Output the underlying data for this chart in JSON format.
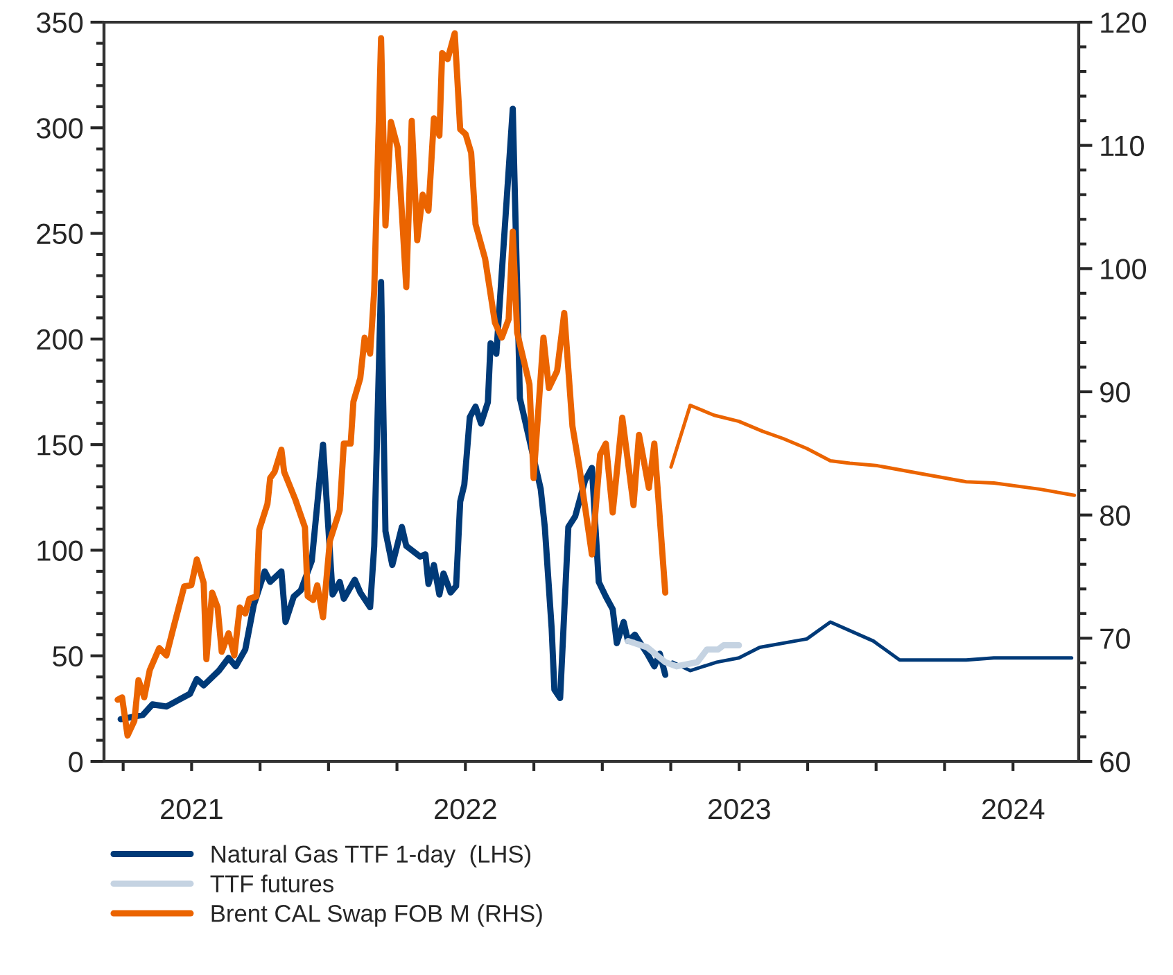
{
  "chart_data": {
    "type": "line",
    "xlim": [
      2021.18,
      2024.74
    ],
    "xticks": [
      {
        "value": 2021.25,
        "label": null
      },
      {
        "value": 2021.5,
        "label": "2021"
      },
      {
        "value": 2021.75,
        "label": null
      },
      {
        "value": 2022,
        "label": null
      },
      {
        "value": 2022.25,
        "label": null
      },
      {
        "value": 2022.5,
        "label": "2022"
      },
      {
        "value": 2022.75,
        "label": null
      },
      {
        "value": 2023,
        "label": null
      },
      {
        "value": 2023.25,
        "label": null
      },
      {
        "value": 2023.5,
        "label": "2023"
      },
      {
        "value": 2023.75,
        "label": null
      },
      {
        "value": 2024,
        "label": null
      },
      {
        "value": 2024.25,
        "label": null
      },
      {
        "value": 2024.5,
        "label": "2024"
      }
    ],
    "ylim": [
      0,
      350
    ],
    "yticks": [
      0,
      50,
      100,
      150,
      200,
      250,
      300,
      350,
      {
        "value": 10,
        "label": null
      },
      {
        "value": 20,
        "label": null
      },
      {
        "value": 30,
        "label": null
      },
      {
        "value": 40,
        "label": null
      },
      {
        "value": 60,
        "label": null
      },
      {
        "value": 70,
        "label": null
      },
      {
        "value": 80,
        "label": null
      },
      {
        "value": 90,
        "label": null
      },
      {
        "value": 110,
        "label": null
      },
      {
        "value": 120,
        "label": null
      },
      {
        "value": 130,
        "label": null
      },
      {
        "value": 140,
        "label": null
      },
      {
        "value": 160,
        "label": null
      },
      {
        "value": 170,
        "label": null
      },
      {
        "value": 180,
        "label": null
      },
      {
        "value": 190,
        "label": null
      },
      {
        "value": 210,
        "label": null
      },
      {
        "value": 220,
        "label": null
      },
      {
        "value": 230,
        "label": null
      },
      {
        "value": 240,
        "label": null
      },
      {
        "value": 260,
        "label": null
      },
      {
        "value": 270,
        "label": null
      },
      {
        "value": 280,
        "label": null
      },
      {
        "value": 290,
        "label": null
      },
      {
        "value": 310,
        "label": null
      },
      {
        "value": 320,
        "label": null
      },
      {
        "value": 330,
        "label": null
      },
      {
        "value": 340,
        "label": null
      }
    ],
    "y2lim": [
      60,
      120
    ],
    "y2ticks": [
      60,
      70,
      80,
      90,
      100,
      110,
      120,
      {
        "value": 62,
        "label": null
      },
      {
        "value": 64,
        "label": null
      },
      {
        "value": 66,
        "label": null
      },
      {
        "value": 68,
        "label": null
      },
      {
        "value": 72,
        "label": null
      },
      {
        "value": 74,
        "label": null
      },
      {
        "value": 76,
        "label": null
      },
      {
        "value": 78,
        "label": null
      },
      {
        "value": 82,
        "label": null
      },
      {
        "value": 84,
        "label": null
      },
      {
        "value": 86,
        "label": null
      },
      {
        "value": 88,
        "label": null
      },
      {
        "value": 92,
        "label": null
      },
      {
        "value": 94,
        "label": null
      },
      {
        "value": 96,
        "label": null
      },
      {
        "value": 98,
        "label": null
      },
      {
        "value": 102,
        "label": null
      },
      {
        "value": 104,
        "label": null
      },
      {
        "value": 106,
        "label": null
      },
      {
        "value": 108,
        "label": null
      },
      {
        "value": 112,
        "label": null
      },
      {
        "value": 114,
        "label": null
      },
      {
        "value": 116,
        "label": null
      },
      {
        "value": 118,
        "label": null
      }
    ],
    "grid": false,
    "legend": "bottom",
    "marker": "none",
    "line_style": "solid",
    "series": [
      {
        "name": "Natural Gas TTF 1-day  (LHS)",
        "color": "#003a78",
        "x": [
          2021.241,
          2021.322,
          2021.357,
          2021.408,
          2021.494,
          2021.519,
          2021.544,
          2021.6,
          2021.635,
          2021.661,
          2021.696,
          2021.727,
          2021.767,
          2021.787,
          2021.828,
          2021.843,
          2021.873,
          2021.899,
          2021.939,
          2021.98,
          2022.015,
          2022.041,
          2022.056,
          2022.096,
          2022.116,
          2022.152,
          2022.167,
          2022.192,
          2022.208,
          2022.233,
          2022.268,
          2022.284,
          2022.334,
          2022.354,
          2022.365,
          2022.385,
          2022.405,
          2022.42,
          2022.446,
          2022.466,
          2022.481,
          2022.496,
          2022.516,
          2022.537,
          2022.557,
          2022.582,
          2022.592,
          2022.613,
          2022.673,
          2022.699,
          2022.775,
          2022.79,
          2022.815,
          2022.825,
          2022.846,
          2022.876,
          2022.901,
          2022.937,
          2022.962,
          2022.987,
          2023.013,
          2023.038,
          2023.053,
          2023.078,
          2023.094,
          2023.119,
          2023.164,
          2023.19,
          2023.21,
          2023.23
        ],
        "values": [
          20,
          22,
          27,
          26,
          32,
          39,
          36,
          43,
          49,
          45,
          53,
          74,
          90,
          85,
          90,
          66,
          78,
          81,
          95,
          150,
          79,
          85,
          77,
          86,
          80,
          73,
          102,
          227,
          109,
          93,
          111,
          102,
          97,
          98,
          84,
          93,
          79,
          89,
          80,
          83,
          123,
          131,
          163,
          168,
          160,
          170,
          198,
          193,
          309,
          172,
          129,
          111,
          63,
          34,
          30,
          111,
          116,
          133,
          139,
          85,
          78,
          72,
          56,
          66,
          57,
          60,
          51,
          45,
          51,
          41
        ]
      },
      {
        "name": "TTF futures",
        "color": "#c5d3e2",
        "x": [
          2023.094,
          2023.164,
          2023.23,
          2023.271,
          2023.347,
          2023.382,
          2023.423,
          2023.443,
          2023.499
        ],
        "values": [
          57,
          54,
          47,
          45,
          47,
          53,
          53,
          55,
          55
        ]
      },
      {
        "color": "#003a78",
        "x": [
          2023.256,
          2023.321,
          2023.418,
          2023.499,
          2023.575,
          2023.747,
          2023.833,
          2023.99,
          2024.086,
          2024.329,
          2024.43,
          2024.714
        ],
        "values": [
          47,
          43,
          47,
          49,
          54,
          58,
          66,
          57,
          48,
          48,
          49,
          49
        ]
      },
      {
        "name": "Brent CAL Swap FOB M (RHS)",
        "color": "#eb6400",
        "axis": "y2",
        "x": [
          2021.23,
          2021.246,
          2021.266,
          2021.291,
          2021.306,
          2021.327,
          2021.347,
          2021.382,
          2021.408,
          2021.433,
          2021.473,
          2021.499,
          2021.519,
          2021.544,
          2021.554,
          2021.575,
          2021.595,
          2021.61,
          2021.635,
          2021.656,
          2021.676,
          2021.696,
          2021.711,
          2021.737,
          2021.747,
          2021.777,
          2021.787,
          2021.803,
          2021.828,
          2021.838,
          2021.878,
          2021.914,
          2021.924,
          2021.944,
          2021.959,
          2021.98,
          2022.005,
          2022.041,
          2022.056,
          2022.081,
          2022.091,
          2022.116,
          2022.132,
          2022.152,
          2022.167,
          2022.192,
          2022.208,
          2022.228,
          2022.253,
          2022.263,
          2022.284,
          2022.304,
          2022.324,
          2022.344,
          2022.365,
          2022.385,
          2022.405,
          2022.415,
          2022.435,
          2022.461,
          2022.481,
          2022.501,
          2022.521,
          2022.537,
          2022.572,
          2022.608,
          2022.633,
          2022.658,
          2022.673,
          2022.689,
          2022.734,
          2022.749,
          2022.785,
          2022.805,
          2022.835,
          2022.861,
          2022.891,
          2022.916,
          2022.962,
          2022.992,
          2023.013,
          2023.038,
          2023.073,
          2023.114,
          2023.134,
          2023.17,
          2023.19,
          2023.23
        ],
        "values": [
          65.0,
          65.2,
          62.1,
          63.3,
          66.6,
          65.2,
          67.4,
          69.2,
          68.6,
          70.8,
          74.2,
          74.3,
          76.4,
          74.5,
          68.3,
          73.7,
          72.5,
          68.9,
          70.4,
          68.6,
          72.5,
          72.0,
          73.2,
          73.4,
          78.8,
          80.9,
          83.0,
          83.5,
          85.3,
          83.5,
          81.3,
          79.0,
          73.4,
          73.1,
          74.3,
          71.7,
          77.9,
          80.4,
          85.8,
          85.8,
          89.2,
          91.1,
          94.4,
          93.1,
          98.2,
          118.7,
          103.5,
          111.9,
          109.8,
          106.4,
          98.5,
          112.0,
          102.3,
          106.0,
          104.7,
          112.2,
          110.8,
          117.5,
          117.0,
          119.1,
          111.3,
          110.9,
          109.4,
          103.6,
          100.8,
          95.6,
          94.4,
          95.9,
          103.0,
          94.8,
          90.6,
          83.0,
          94.4,
          90.3,
          91.7,
          96.4,
          87.2,
          83.9,
          76.8,
          84.9,
          85.8,
          80.2,
          87.9,
          80.8,
          86.5,
          82.2,
          85.8,
          73.7
        ]
      },
      {
        "color": "#eb6400",
        "axis": "y2",
        "x": [
          2023.251,
          2023.321,
          2023.408,
          2023.499,
          2023.585,
          2023.661,
          2023.747,
          2023.833,
          2023.904,
          2024.005,
          2024.177,
          2024.329,
          2024.43,
          2024.597,
          2024.724
        ],
        "values": [
          83.9,
          88.9,
          88.1,
          87.6,
          86.8,
          86.2,
          85.4,
          84.4,
          84.2,
          84.0,
          83.3,
          82.7,
          82.6,
          82.1,
          81.6
        ]
      }
    ]
  }
}
